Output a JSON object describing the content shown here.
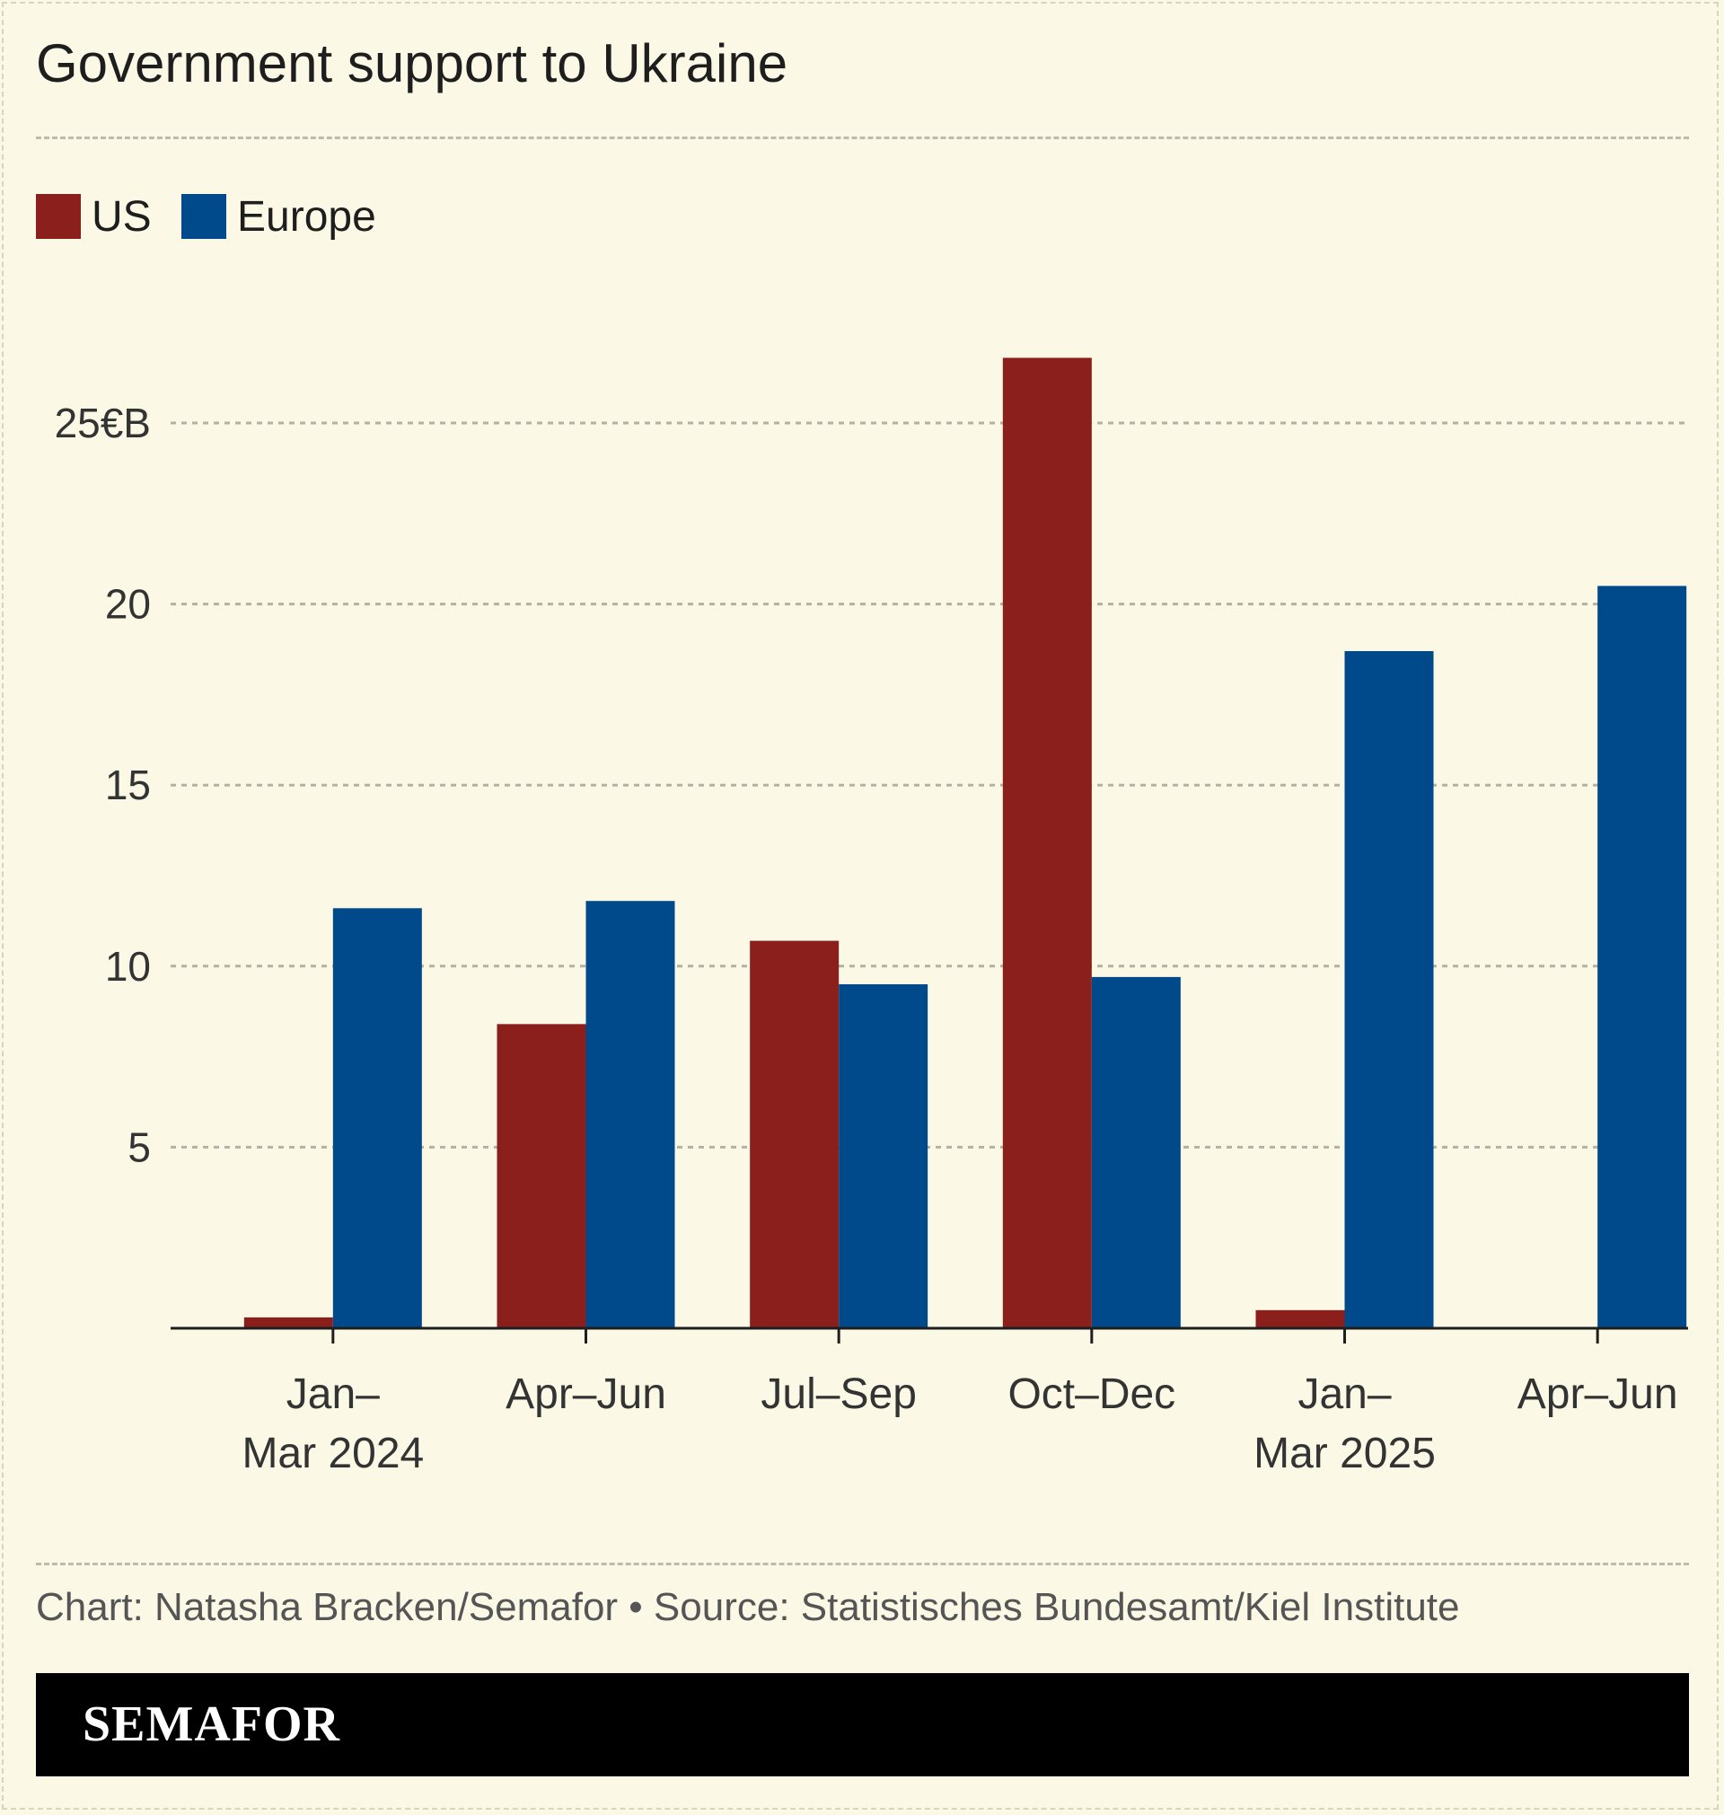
{
  "header": {
    "title": "Government support to Ukraine"
  },
  "footer": {
    "source": "Chart: Natasha Bracken/Semafor • Source: Statistisches Bundesamt/Kiel Institute",
    "brand": "SEMAFOR"
  },
  "colors": {
    "background": "#fbf9e6",
    "us": "#8b1f1b",
    "europe": "#004a8c",
    "brand_bar": "#000000"
  },
  "chart_data": {
    "type": "bar",
    "title": "Government support to Ukraine",
    "xlabel": "",
    "ylabel": "",
    "categories": [
      [
        "Jan–",
        "Mar 2024"
      ],
      [
        "Apr–Jun"
      ],
      [
        "Jul–Sep"
      ],
      [
        "Oct–Dec"
      ],
      [
        "Jan–",
        "Mar 2025"
      ],
      [
        "Apr–Jun"
      ]
    ],
    "series": [
      {
        "name": "US",
        "color": "#8b1f1b",
        "values": [
          0.3,
          8.4,
          10.7,
          26.8,
          0.5,
          0
        ]
      },
      {
        "name": "Europe",
        "color": "#004a8c",
        "values": [
          11.6,
          11.8,
          9.5,
          9.7,
          18.7,
          20.5
        ]
      }
    ],
    "ylim": [
      0,
      25
    ],
    "y_ticks": [
      5,
      10,
      15,
      20,
      25
    ],
    "y_tick_labels": [
      "5",
      "10",
      "15",
      "20",
      "25€B"
    ],
    "grid": true,
    "legend": "top-left"
  }
}
